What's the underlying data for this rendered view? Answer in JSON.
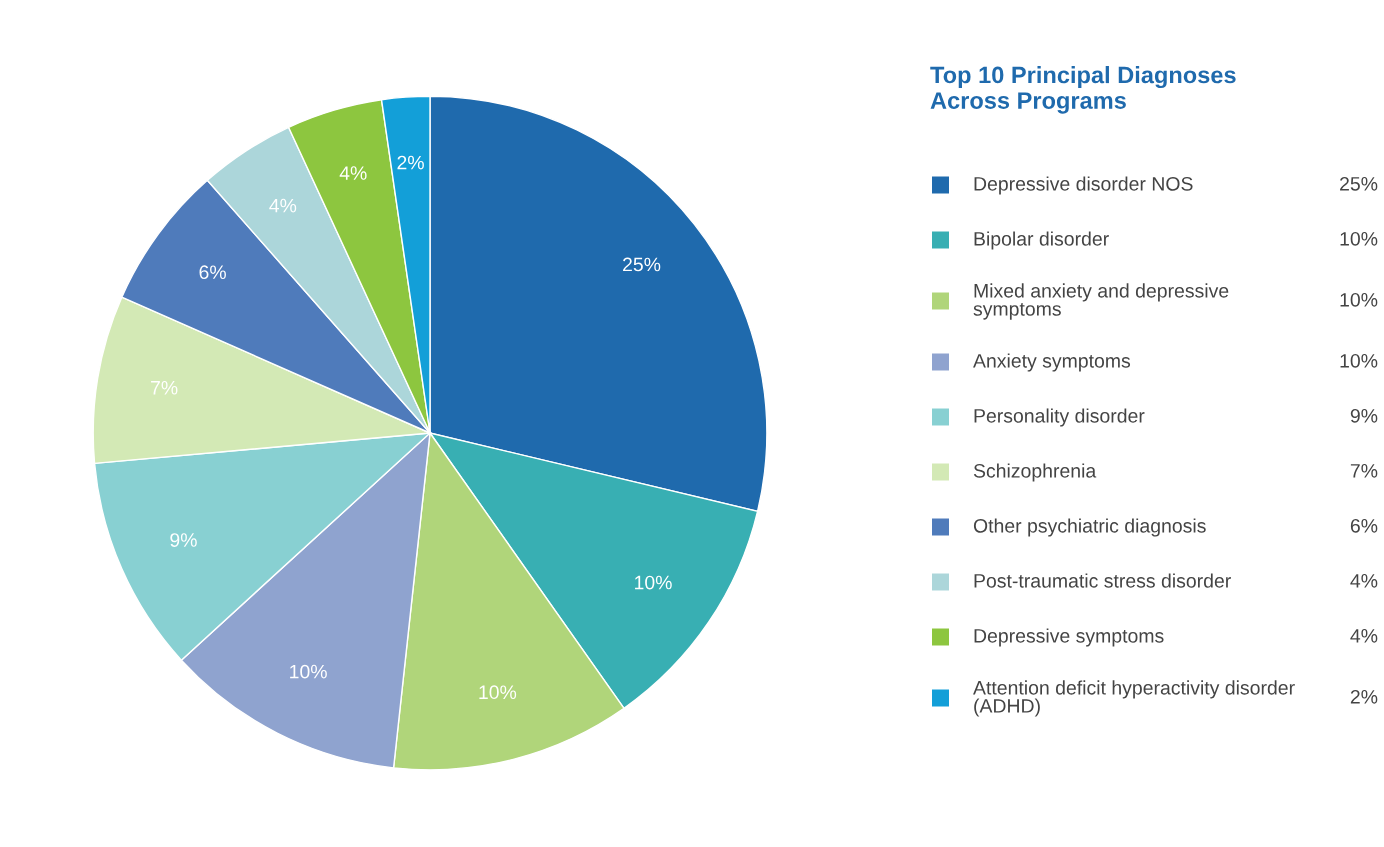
{
  "chart_data": {
    "type": "pie",
    "title": "Top 10 Principal Diagnoses Across Programs",
    "categories": [
      "Depressive disorder NOS",
      "Bipolar disorder",
      "Mixed anxiety and depressive symptoms",
      "Anxiety symptoms",
      "Personality disorder",
      "Schizophrenia",
      "Other psychiatric diagnosis",
      "Post-traumatic stress disorder",
      "Depressive symptoms",
      "Attention deficit hyperactivity disorder (ADHD)"
    ],
    "values": [
      25,
      10,
      10,
      10,
      9,
      7,
      6,
      4,
      4,
      2
    ],
    "value_labels": [
      "25%",
      "10%",
      "10%",
      "10%",
      "9%",
      "7%",
      "6%",
      "4%",
      "4%",
      "2%"
    ],
    "colors": [
      "#1f6aad",
      "#38afb3",
      "#b0d57a",
      "#8fa3cf",
      "#88d0d2",
      "#d3e9b5",
      "#4f7bbb",
      "#acd6da",
      "#8dc63f",
      "#139fd8"
    ],
    "legend": "right"
  }
}
